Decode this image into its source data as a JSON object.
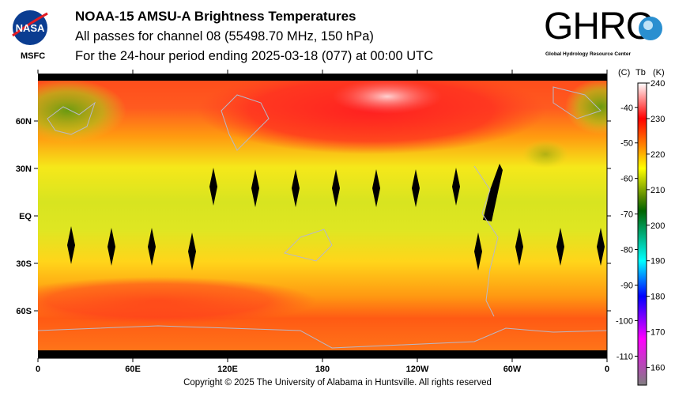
{
  "header": {
    "title": "NOAA-15 AMSU-A Brightness Temperatures",
    "subtitle": "All passes for channel 08 (55498.70 MHz, 150 hPa)",
    "period": "For the 24-hour period ending 2025-03-18 (077) at 00:00 UTC",
    "nasa_logo": "NASA",
    "nasa_sub": "MSFC",
    "ghrc_logo": "GHRC",
    "ghrc_sub": "Global Hydrology Resource Center"
  },
  "footer": {
    "copyright": "Copyright © 2025 The University of Alabama in Huntsville.  All rights reserved"
  },
  "chart_data": {
    "type": "heatmap",
    "title": "NOAA-15 AMSU-A Brightness Temperatures",
    "x_ticks": [
      "0",
      "60E",
      "120E",
      "180",
      "120W",
      "60W",
      "0"
    ],
    "x_values": [
      0,
      60,
      120,
      180,
      240,
      300,
      360
    ],
    "y_ticks": [
      "60N",
      "30N",
      "EQ",
      "30S",
      "60S"
    ],
    "y_values": [
      60,
      30,
      0,
      -30,
      -60
    ],
    "xlim": [
      0,
      360
    ],
    "ylim": [
      -90,
      90
    ],
    "colorbar": {
      "label_c": "(C)",
      "label_tb": "Tb",
      "label_k": "(K)",
      "kelvin_ticks": [
        "240",
        "230",
        "220",
        "210",
        "200",
        "190",
        "180",
        "170",
        "160"
      ],
      "kelvin_values": [
        240,
        230,
        220,
        210,
        200,
        190,
        180,
        170,
        160
      ],
      "celsius_ticks": [
        "-40",
        "-50",
        "-60",
        "-70",
        "-80",
        "-90",
        "-100",
        "-110"
      ],
      "celsius_values": [
        -40,
        -50,
        -60,
        -70,
        -80,
        -90,
        -100,
        -110
      ],
      "range_k": [
        155,
        240
      ],
      "stops": [
        [
          "#ffffff",
          240
        ],
        [
          "#ff0000",
          230
        ],
        [
          "#ff8c00",
          222
        ],
        [
          "#ffff00",
          216
        ],
        [
          "#5a8a00",
          208
        ],
        [
          "#006400",
          204
        ],
        [
          "#00ffff",
          190
        ],
        [
          "#0000ff",
          180
        ],
        [
          "#ff00ff",
          168
        ],
        [
          "#808080",
          155
        ]
      ]
    },
    "description_fields": {
      "polar_north_k": 228,
      "mid_north_k": 222,
      "tropics_k": 213,
      "mid_south_k": 219,
      "polar_south_k": 225
    }
  }
}
